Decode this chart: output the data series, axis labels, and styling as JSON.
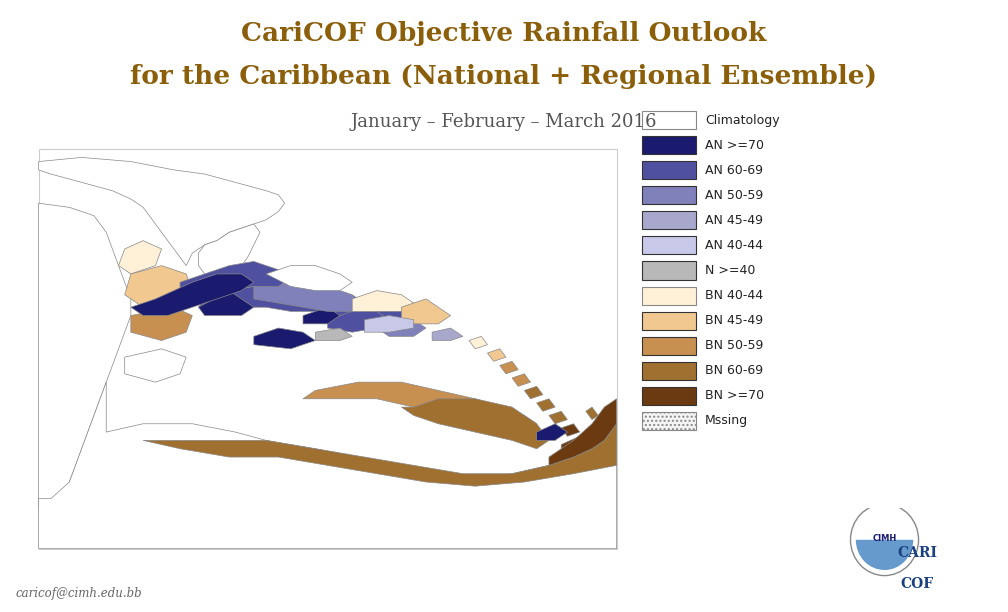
{
  "title_line1": "CariCOF Objective Rainfall Outlook",
  "title_line2": "for the Caribbean (National + Regional Ensemble)",
  "subtitle": "January – February – March 2016",
  "title_color": "#8B5E0A",
  "subtitle_color": "#555555",
  "background_color": "#FFFFFF",
  "email": "caricof@cimh.edu.bb",
  "map_border_color": "#999999",
  "map_land_color": "#FFFFFF",
  "map_outline_color": "#888888",
  "legend_items": [
    {
      "label": "Climatology",
      "color": "#FFFFFF",
      "edgecolor": "#888888",
      "hatch": ""
    },
    {
      "label": "AN >=70",
      "color": "#1A1A6E",
      "edgecolor": "#333333",
      "hatch": ""
    },
    {
      "label": "AN 60-69",
      "color": "#5050A0",
      "edgecolor": "#333333",
      "hatch": ""
    },
    {
      "label": "AN 50-59",
      "color": "#8080BB",
      "edgecolor": "#333333",
      "hatch": ""
    },
    {
      "label": "AN 45-49",
      "color": "#A8A8CC",
      "edgecolor": "#333333",
      "hatch": ""
    },
    {
      "label": "AN 40-44",
      "color": "#C8C8E8",
      "edgecolor": "#333333",
      "hatch": ""
    },
    {
      "label": "N >=40",
      "color": "#B8B8B8",
      "edgecolor": "#333333",
      "hatch": ""
    },
    {
      "label": "BN 40-44",
      "color": "#FFF0D8",
      "edgecolor": "#888888",
      "hatch": ""
    },
    {
      "label": "BN 45-49",
      "color": "#F0C890",
      "edgecolor": "#333333",
      "hatch": ""
    },
    {
      "label": "BN 50-59",
      "color": "#C89050",
      "edgecolor": "#333333",
      "hatch": ""
    },
    {
      "label": "BN 60-69",
      "color": "#A07030",
      "edgecolor": "#333333",
      "hatch": ""
    },
    {
      "label": "BN >=70",
      "color": "#6B3A10",
      "edgecolor": "#333333",
      "hatch": ""
    },
    {
      "label": "Mssing",
      "color": "#F5F5F5",
      "edgecolor": "#888888",
      "hatch": "...."
    }
  ],
  "fig_width": 10.08,
  "fig_height": 6.12,
  "dpi": 100
}
